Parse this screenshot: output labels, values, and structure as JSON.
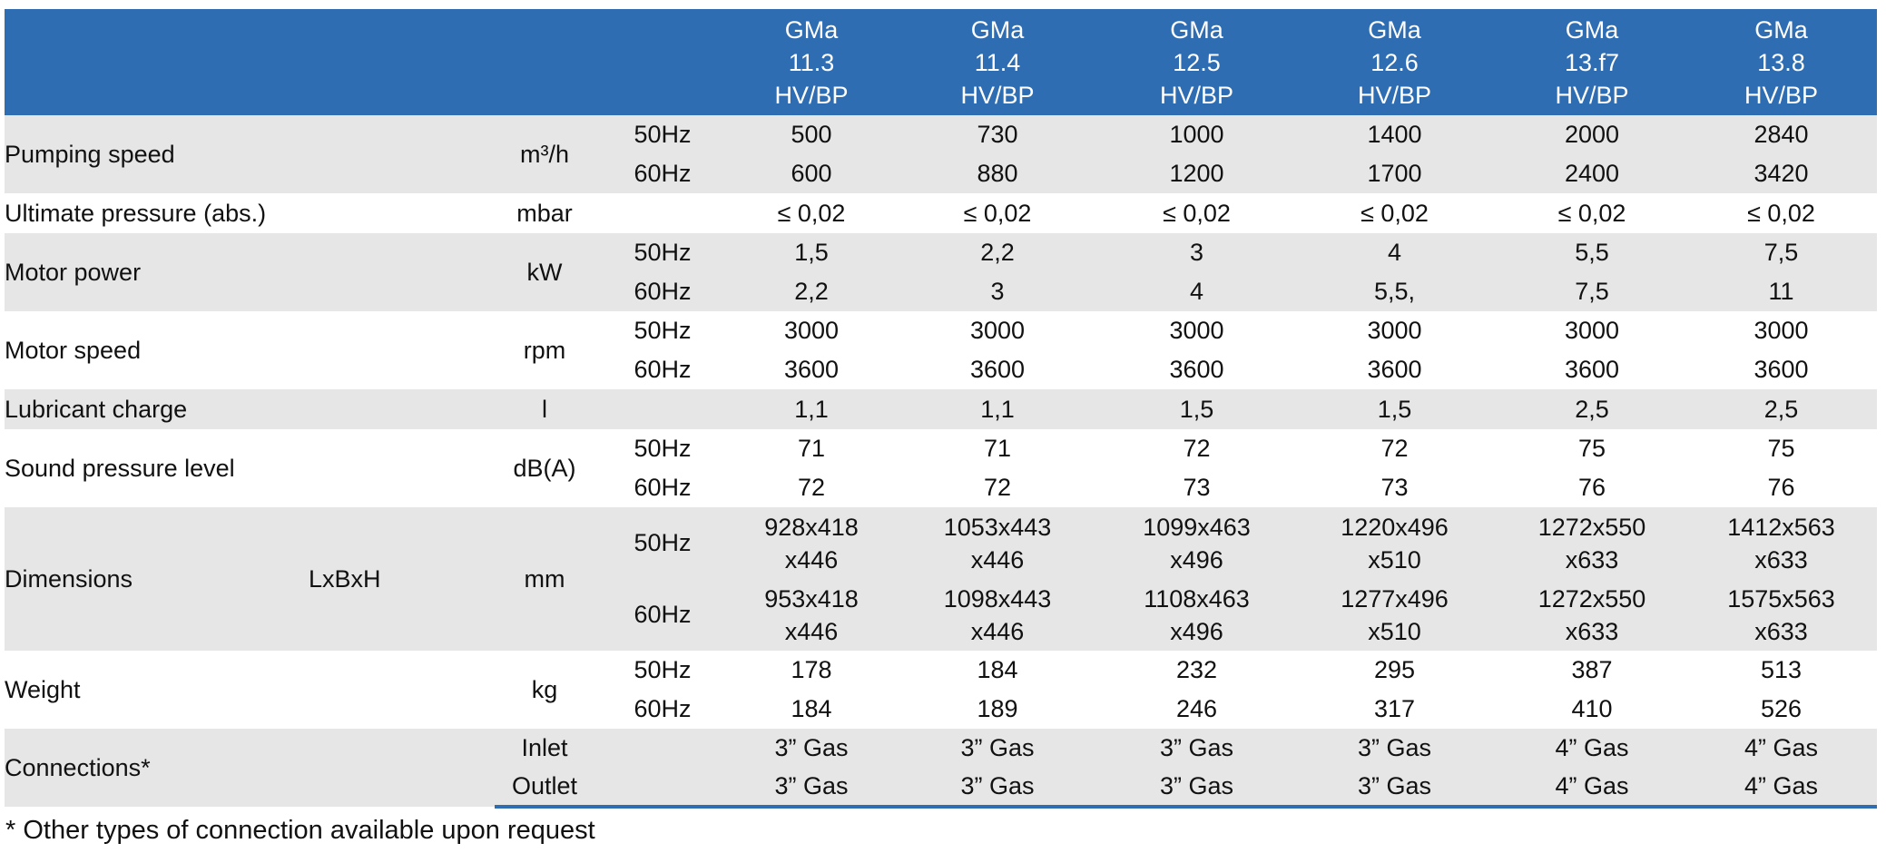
{
  "header": {
    "models": [
      [
        "GMa",
        "11.3",
        "HV/BP"
      ],
      [
        "GMa",
        "11.4",
        "HV/BP"
      ],
      [
        "GMa",
        "12.5",
        "HV/BP"
      ],
      [
        "GMa",
        "12.6",
        "HV/BP"
      ],
      [
        "GMa",
        "13.f7",
        "HV/BP"
      ],
      [
        "GMa",
        "13.8",
        "HV/BP"
      ]
    ]
  },
  "rows": {
    "pumping_speed": {
      "label": "Pumping speed",
      "unit": "m³/h",
      "f1": "50Hz",
      "v1": [
        "500",
        "730",
        "1000",
        "1400",
        "2000",
        "2840"
      ],
      "f2": "60Hz",
      "v2": [
        "600",
        "880",
        "1200",
        "1700",
        "2400",
        "3420"
      ]
    },
    "ultimate_pressure": {
      "label": "Ultimate pressure (abs.)",
      "unit": "mbar",
      "v": [
        "≤ 0,02",
        "≤ 0,02",
        "≤ 0,02",
        "≤ 0,02",
        "≤ 0,02",
        "≤ 0,02"
      ]
    },
    "motor_power": {
      "label": "Motor power",
      "unit": "kW",
      "f1": "50Hz",
      "v1": [
        "1,5",
        "2,2",
        "3",
        "4",
        "5,5",
        "7,5"
      ],
      "f2": "60Hz",
      "v2": [
        "2,2",
        "3",
        "4",
        "5,5,",
        "7,5",
        "11"
      ]
    },
    "motor_speed": {
      "label": "Motor speed",
      "unit": "rpm",
      "f1": "50Hz",
      "v1": [
        "3000",
        "3000",
        "3000",
        "3000",
        "3000",
        "3000"
      ],
      "f2": "60Hz",
      "v2": [
        "3600",
        "3600",
        "3600",
        "3600",
        "3600",
        "3600"
      ]
    },
    "lubricant_charge": {
      "label": "Lubricant charge",
      "unit": "l",
      "v": [
        "1,1",
        "1,1",
        "1,5",
        "1,5",
        "2,5",
        "2,5"
      ]
    },
    "sound_pressure": {
      "label": "Sound pressure level",
      "unit": "dB(A)",
      "f1": "50Hz",
      "v1": [
        "71",
        "71",
        "72",
        "72",
        "75",
        "75"
      ],
      "f2": "60Hz",
      "v2": [
        "72",
        "72",
        "73",
        "73",
        "76",
        "76"
      ]
    },
    "dimensions": {
      "label": "Dimensions",
      "sublabel": "LxBxH",
      "unit": "mm",
      "f1": "50Hz",
      "v1": [
        [
          "928x418",
          "x446"
        ],
        [
          "1053x443",
          "x446"
        ],
        [
          "1099x463",
          "x496"
        ],
        [
          "1220x496",
          "x510"
        ],
        [
          "1272x550",
          "x633"
        ],
        [
          "1412x563",
          "x633"
        ]
      ],
      "f2": "60Hz",
      "v2": [
        [
          "953x418",
          "x446"
        ],
        [
          "1098x443",
          "x446"
        ],
        [
          "1108x463",
          "x496"
        ],
        [
          "1277x496",
          "x510"
        ],
        [
          "1272x550",
          "x633"
        ],
        [
          "1575x563",
          "x633"
        ]
      ]
    },
    "weight": {
      "label": "Weight",
      "unit": "kg",
      "f1": "50Hz",
      "v1": [
        "178",
        "184",
        "232",
        "295",
        "387",
        "513"
      ],
      "f2": "60Hz",
      "v2": [
        "184",
        "189",
        "246",
        "317",
        "410",
        "526"
      ]
    },
    "connections": {
      "label": "Connections*",
      "s1": "Inlet",
      "v1": [
        "3” Gas",
        "3” Gas",
        "3” Gas",
        "3” Gas",
        "4” Gas",
        "4” Gas"
      ],
      "s2": "Outlet",
      "v2": [
        "3” Gas",
        "3” Gas",
        "3” Gas",
        "3” Gas",
        "4” Gas",
        "4” Gas"
      ]
    }
  },
  "footnote": "* Other types of connection available upon request",
  "colors": {
    "header_bg": "#2f6db3",
    "header_text": "#ffffff",
    "row_shade": "#e6e6e6"
  }
}
